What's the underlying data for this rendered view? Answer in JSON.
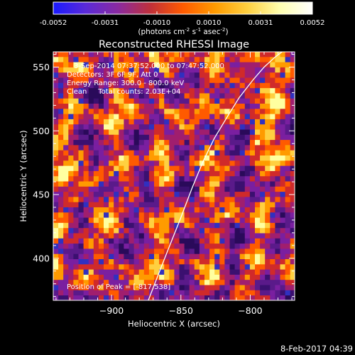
{
  "colorbar": {
    "ticks": [
      "-0.0052",
      "-0.0031",
      "-0.0010",
      "0.0010",
      "0.0031",
      "0.0052"
    ],
    "units_pre": "(photons cm",
    "units_e1": "-2",
    "units_mid1": " s",
    "units_e2": "-1",
    "units_mid2": " asec",
    "units_e3": "-2",
    "units_post": ")",
    "colors": [
      "#1a1aff",
      "#5a2ad8",
      "#8a2aa0",
      "#c0303a",
      "#ff5a00",
      "#ff9b00",
      "#ffd040",
      "#ffffb0",
      "#ffffff"
    ]
  },
  "chart_data": {
    "type": "heatmap",
    "title": "Reconstructed RHESSI Image",
    "xlabel": "Heliocentric X (arcsec)",
    "ylabel": "Heliocentric Y (arcsec)",
    "xlim": [
      -942,
      -768
    ],
    "ylim": [
      367,
      562
    ],
    "xticks": [
      -900,
      -850,
      -800
    ],
    "yticks": [
      400,
      450,
      500,
      550
    ],
    "value_range": [
      -0.0052,
      0.0052
    ],
    "limb_curve": {
      "x": [
        -873.5,
        -866,
        -858,
        -850,
        -842,
        -834,
        -826,
        -816,
        -808,
        -798,
        -790,
        -782,
        -777
      ],
      "y": [
        367,
        388,
        410,
        432,
        455,
        476,
        494,
        512,
        526,
        540,
        550,
        558,
        562
      ]
    },
    "annotations": [
      "3-Sep-2014 07:37:52.000 to 07:47:52.000",
      "Detectors: 3F 6F 9F, Att 0",
      "Energy Range: 300.0 - 800.0 keV",
      "Clean     Total counts: 2.03E+04"
    ],
    "peak_label": "Position of Peak = [-817,538]"
  },
  "footer_timestamp": "8-Feb-2017 04:39"
}
